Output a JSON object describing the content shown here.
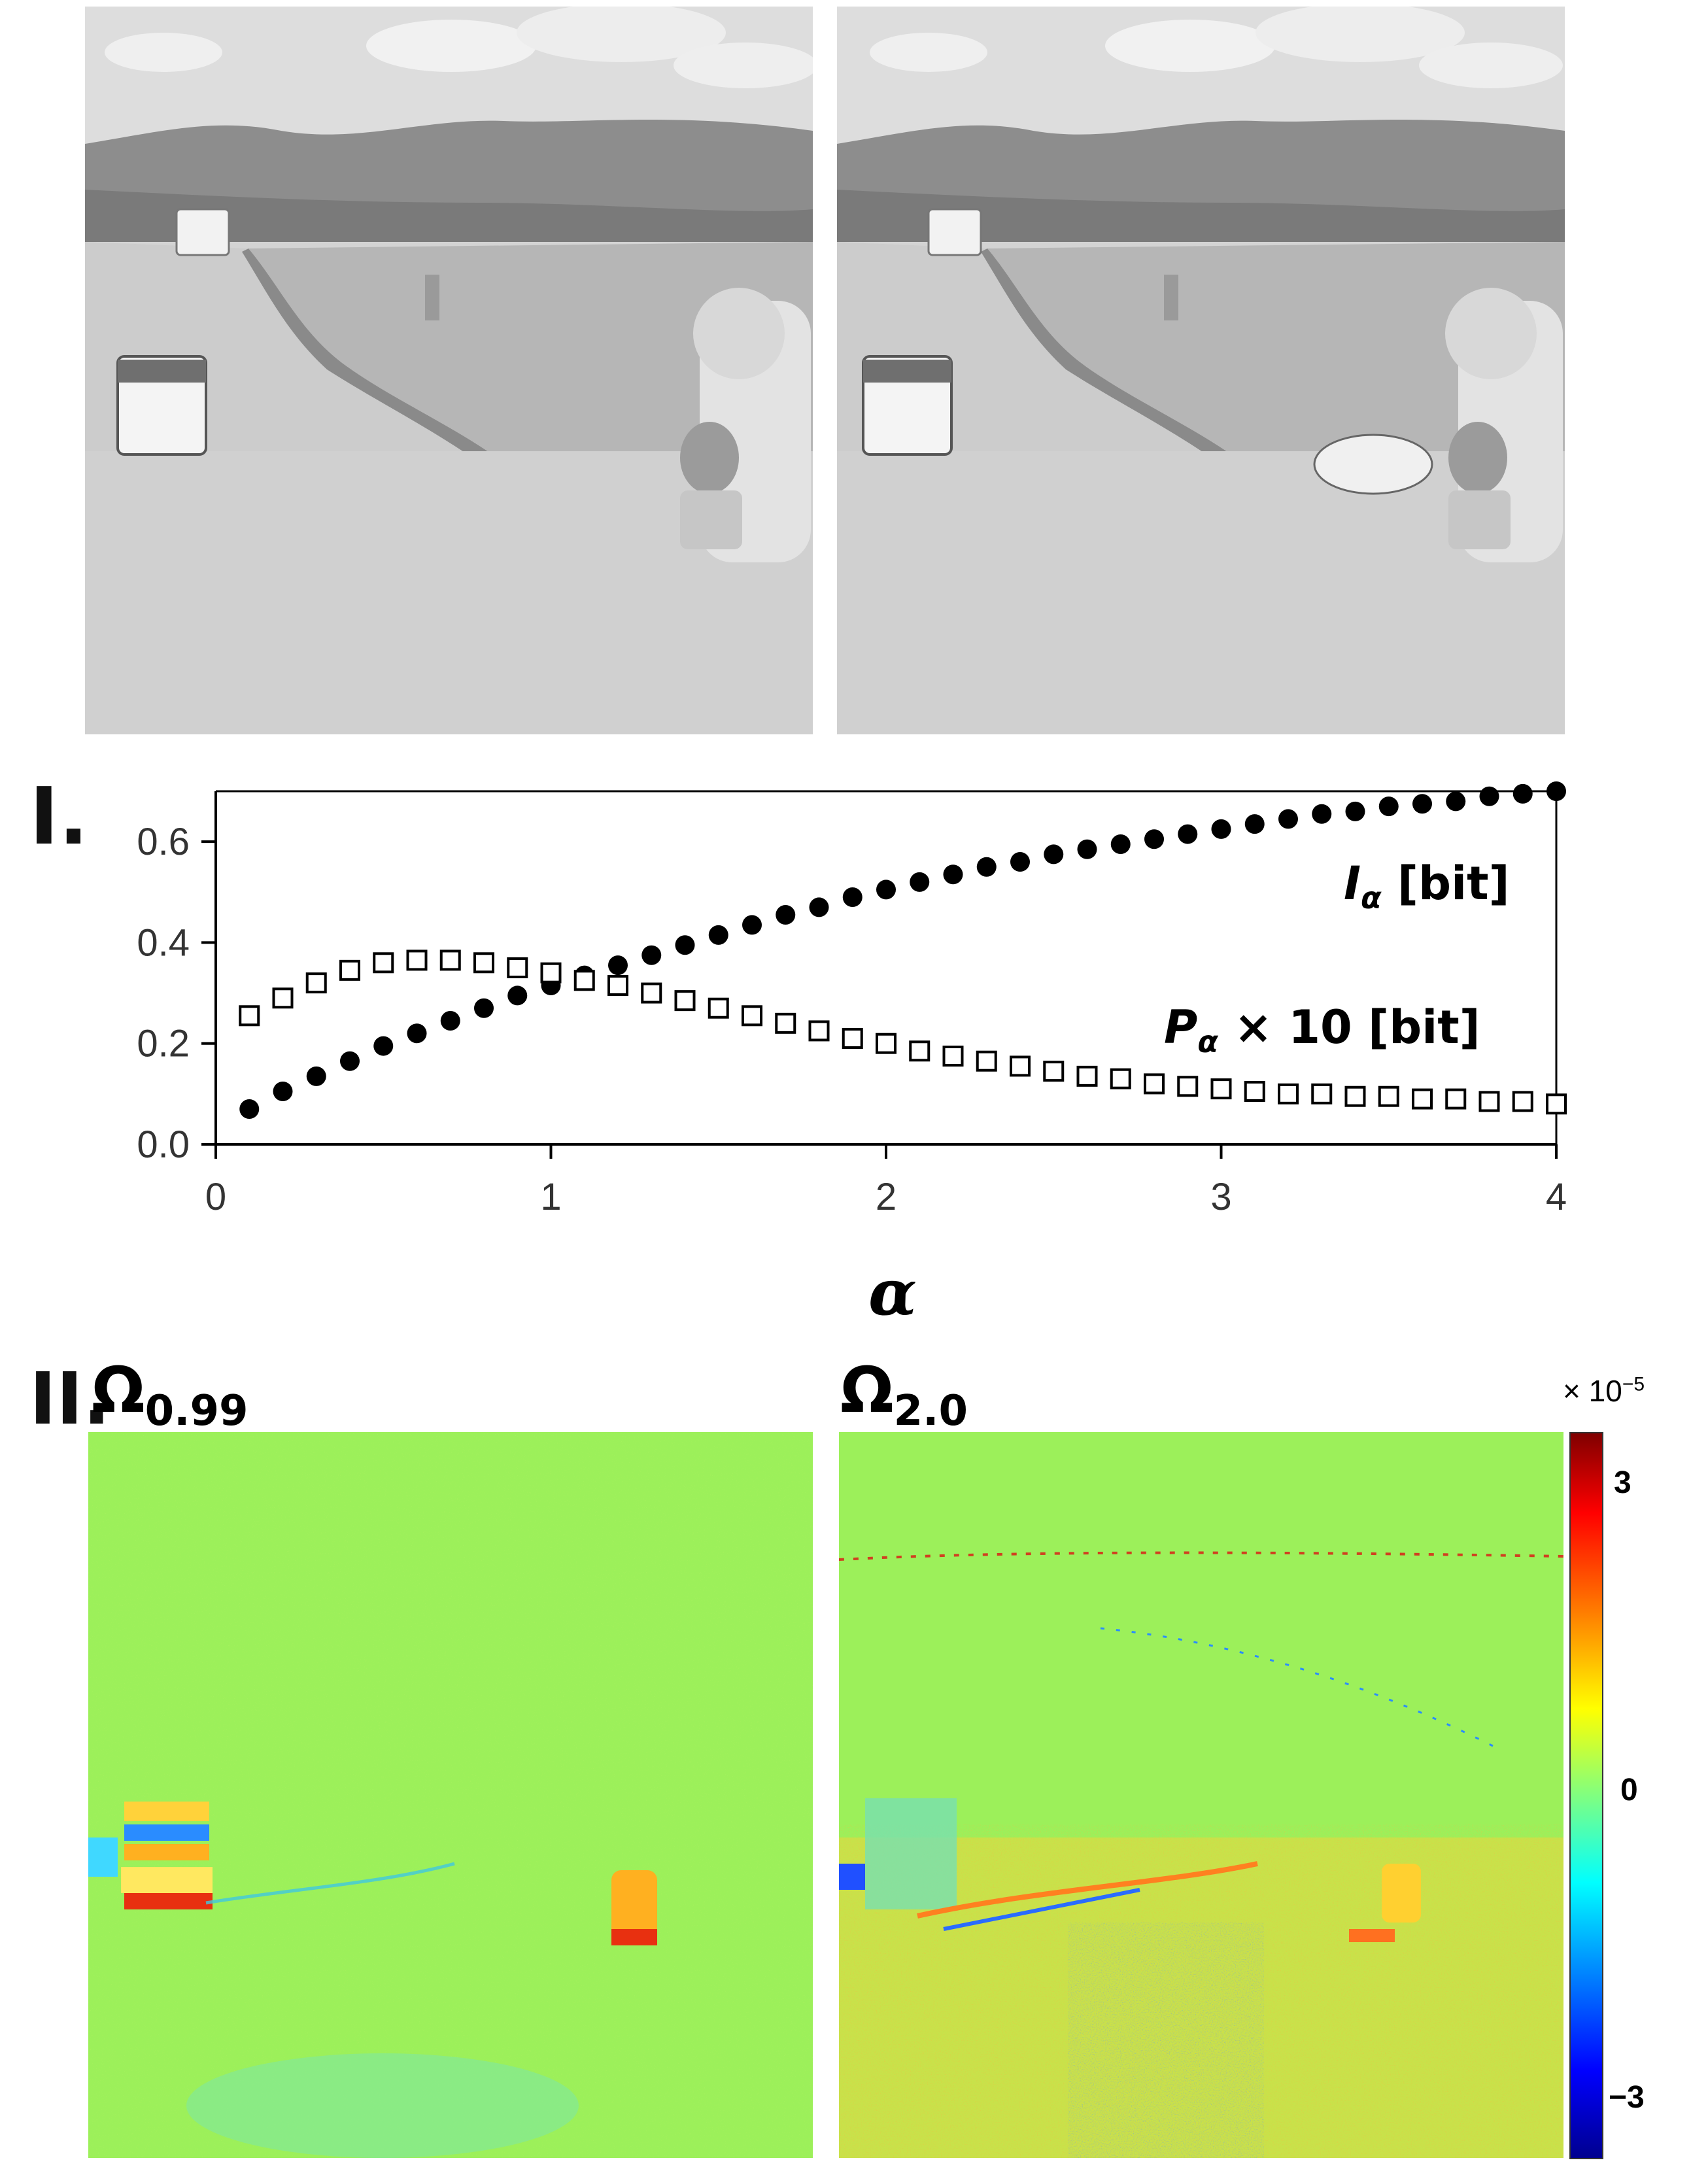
{
  "panel_I_label": "I.",
  "panel_II_label": "II.",
  "maps": {
    "left": {
      "title_symbol": "Ω",
      "title_sub": "0.99"
    },
    "right": {
      "title_symbol": "Ω",
      "title_sub": "2.0"
    }
  },
  "colorbar": {
    "scale": "× 10",
    "scale_exp": "−5",
    "ticks": [
      "3",
      "0",
      "−3"
    ],
    "range": [
      -3.5,
      3.5
    ],
    "colormap": "jet"
  },
  "chart_data": {
    "type": "scatter",
    "xlabel": "α",
    "xlim": [
      0,
      4
    ],
    "ylim": [
      0,
      0.7
    ],
    "x_ticks": [
      "0",
      "1",
      "2",
      "3",
      "4"
    ],
    "y_ticks": [
      "0.0",
      "0.2",
      "0.4",
      "0.6"
    ],
    "series": [
      {
        "name": "I_α [bit]",
        "label_main": "I",
        "label_sub": "α",
        "label_unit": " [bit]",
        "marker": "filled-circle",
        "color": "#000000",
        "x": [
          0.1,
          0.2,
          0.3,
          0.4,
          0.5,
          0.6,
          0.7,
          0.8,
          0.9,
          1.0,
          1.1,
          1.2,
          1.3,
          1.4,
          1.5,
          1.6,
          1.7,
          1.8,
          1.9,
          2.0,
          2.1,
          2.2,
          2.3,
          2.4,
          2.5,
          2.6,
          2.7,
          2.8,
          2.9,
          3.0,
          3.1,
          3.2,
          3.3,
          3.4,
          3.5,
          3.6,
          3.7,
          3.8,
          3.9,
          4.0
        ],
        "y": [
          0.07,
          0.105,
          0.135,
          0.165,
          0.195,
          0.22,
          0.245,
          0.27,
          0.295,
          0.315,
          0.335,
          0.355,
          0.375,
          0.395,
          0.415,
          0.435,
          0.455,
          0.47,
          0.49,
          0.505,
          0.52,
          0.535,
          0.55,
          0.56,
          0.575,
          0.585,
          0.595,
          0.605,
          0.615,
          0.625,
          0.635,
          0.645,
          0.655,
          0.66,
          0.67,
          0.675,
          0.68,
          0.69,
          0.695,
          0.7
        ]
      },
      {
        "name": "P_α × 10 [bit]",
        "label_main": "P",
        "label_sub": "α",
        "label_unit": " × 10 [bit]",
        "marker": "open-square",
        "color": "#000000",
        "x": [
          0.1,
          0.2,
          0.3,
          0.4,
          0.5,
          0.6,
          0.7,
          0.8,
          0.9,
          1.0,
          1.1,
          1.2,
          1.3,
          1.4,
          1.5,
          1.6,
          1.7,
          1.8,
          1.9,
          2.0,
          2.1,
          2.2,
          2.3,
          2.4,
          2.5,
          2.6,
          2.7,
          2.8,
          2.9,
          3.0,
          3.1,
          3.2,
          3.3,
          3.4,
          3.5,
          3.6,
          3.7,
          3.8,
          3.9,
          4.0
        ],
        "y": [
          0.255,
          0.29,
          0.32,
          0.345,
          0.36,
          0.365,
          0.365,
          0.36,
          0.35,
          0.34,
          0.325,
          0.315,
          0.3,
          0.285,
          0.27,
          0.255,
          0.24,
          0.225,
          0.21,
          0.2,
          0.185,
          0.175,
          0.165,
          0.155,
          0.145,
          0.135,
          0.13,
          0.12,
          0.115,
          0.11,
          0.105,
          0.1,
          0.1,
          0.095,
          0.095,
          0.09,
          0.09,
          0.085,
          0.085,
          0.08
        ]
      }
    ]
  }
}
